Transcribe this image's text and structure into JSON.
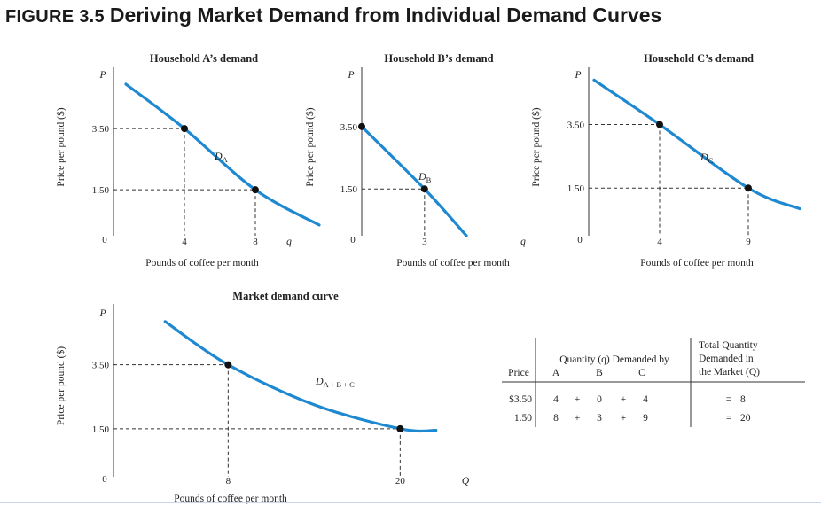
{
  "figure": {
    "label": "FIGURE 3.5",
    "title": "Deriving Market Demand from Individual Demand Curves"
  },
  "colors": {
    "curve": "#1e88d0",
    "point": "#111111",
    "axis": "#333333",
    "guide": "#333333"
  },
  "chart_data": [
    {
      "type": "line",
      "title": "Household A’s demand",
      "xlabel": "Pounds of coffee per month",
      "ylabel": "Price per pound ($)",
      "x_axis_symbol": "q",
      "y_axis_symbol": "P",
      "xlim": [
        0,
        10
      ],
      "ylim": [
        0,
        5.5
      ],
      "x_ticks": [
        "0",
        "4",
        "8"
      ],
      "y_ticks": [
        "3.50",
        "1.50"
      ],
      "series": [
        {
          "name": "DA",
          "x": [
            0.7,
            4,
            8,
            11.6
          ],
          "y": [
            4.95,
            3.5,
            1.5,
            0.35
          ]
        }
      ],
      "points": [
        {
          "x": 4,
          "y": 3.5
        },
        {
          "x": 8,
          "y": 1.5
        }
      ],
      "curve_label": {
        "main": "D",
        "sub": "A"
      }
    },
    {
      "type": "line",
      "title": "Household B’s demand",
      "xlabel": "Pounds of coffee per month",
      "ylabel": "Price per pound ($)",
      "x_axis_symbol": "q",
      "y_axis_symbol": "P",
      "xlim": [
        0,
        7.2
      ],
      "ylim": [
        0,
        5.4
      ],
      "x_ticks": [
        "0",
        "3"
      ],
      "y_ticks": [
        "3.50",
        "1.50"
      ],
      "series": [
        {
          "name": "DB",
          "x": [
            0,
            3,
            5
          ],
          "y": [
            3.5,
            1.5,
            0
          ]
        }
      ],
      "points": [
        {
          "x": 0,
          "y": 3.5
        },
        {
          "x": 3,
          "y": 1.5
        }
      ],
      "curve_label": {
        "main": "D",
        "sub": "B"
      }
    },
    {
      "type": "line",
      "title": "Household C’s demand",
      "xlabel": "Pounds of coffee per month",
      "ylabel": "Price per pound ($)",
      "x_axis_symbol": "",
      "y_axis_symbol": "P",
      "xlim": [
        0,
        12.2
      ],
      "ylim": [
        0,
        5.3
      ],
      "x_ticks": [
        "0",
        "4",
        "9"
      ],
      "y_ticks": [
        "3.50",
        "1.50"
      ],
      "series": [
        {
          "name": "DC",
          "x": [
            0.3,
            4,
            9,
            11.9
          ],
          "y": [
            4.9,
            3.5,
            1.5,
            0.85
          ]
        }
      ],
      "points": [
        {
          "x": 4,
          "y": 3.5
        },
        {
          "x": 9,
          "y": 1.5
        }
      ],
      "curve_label": {
        "main": "D",
        "sub": "C"
      }
    },
    {
      "type": "line",
      "title": "Market demand curve",
      "xlabel": "Pounds of coffee per month",
      "ylabel": "Price per pound ($)",
      "x_axis_symbol": "Q",
      "y_axis_symbol": "P",
      "xlim": [
        0,
        24
      ],
      "ylim": [
        0,
        5.4
      ],
      "x_ticks": [
        "0",
        "8",
        "20"
      ],
      "y_ticks": [
        "3.50",
        "1.50"
      ],
      "series": [
        {
          "name": "DA+B+C",
          "x": [
            3.6,
            8,
            14,
            20,
            22.5
          ],
          "y": [
            4.85,
            3.5,
            2.25,
            1.5,
            1.45
          ]
        }
      ],
      "points": [
        {
          "x": 8,
          "y": 3.5
        },
        {
          "x": 20,
          "y": 1.5
        }
      ],
      "curve_label": {
        "main": "D",
        "sub": "A + B + C"
      }
    }
  ],
  "table": {
    "col_price": "Price",
    "col_quantity": "Quantity (q) Demanded by",
    "col_households": [
      "A",
      "B",
      "C"
    ],
    "col_total": [
      "Total Quantity",
      "Demanded in",
      "the Market (Q)"
    ],
    "rows": [
      {
        "price": "$3.50",
        "a": "4",
        "b": "0",
        "c": "4",
        "total": "8"
      },
      {
        "price": "1.50",
        "a": "8",
        "b": "3",
        "c": "9",
        "total": "20"
      }
    ],
    "plus": "+",
    "equals": "="
  }
}
